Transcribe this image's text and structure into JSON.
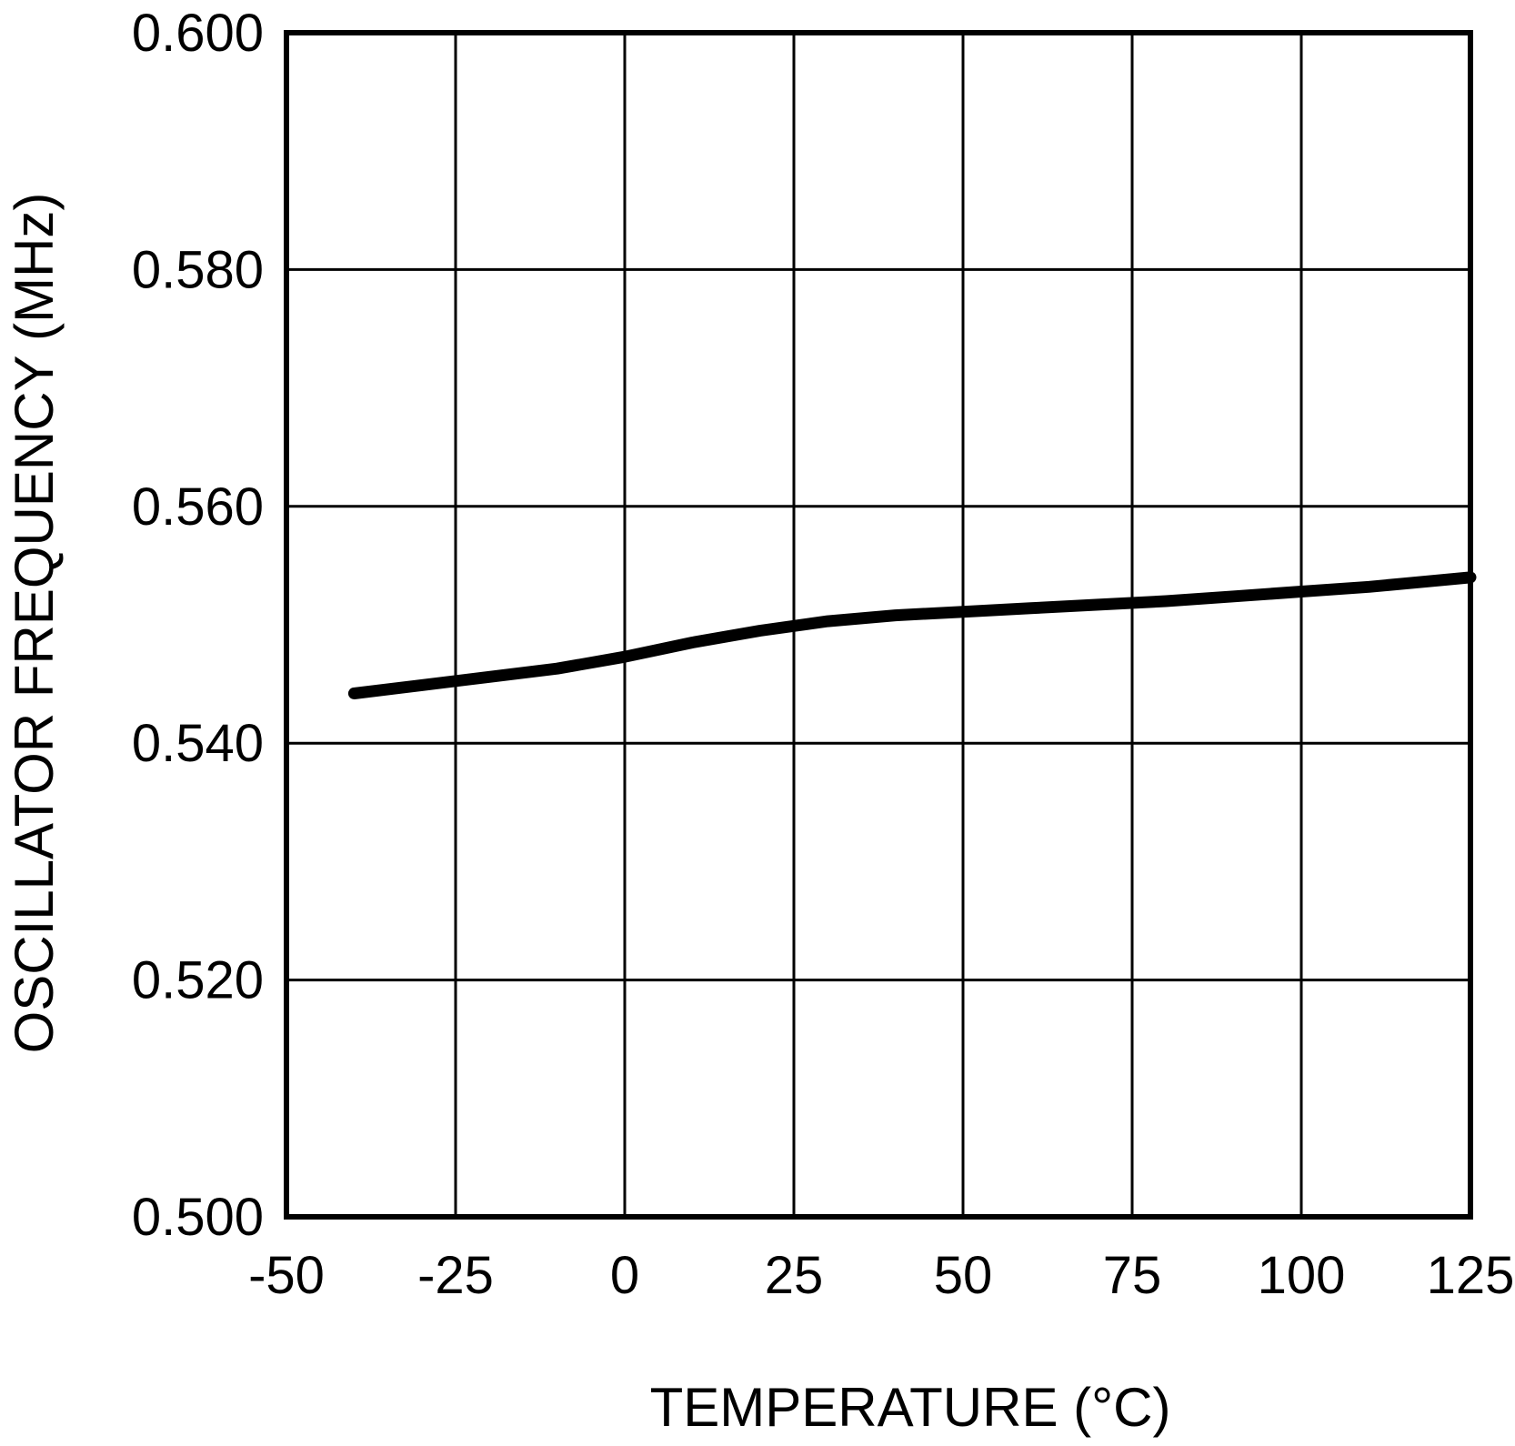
{
  "chart_data": {
    "type": "line",
    "title": "",
    "xlabel": "TEMPERATURE (°C)",
    "ylabel": "OSCILLATOR FREQUENCY (MHz)",
    "xlim": [
      -50,
      125
    ],
    "ylim": [
      0.5,
      0.6
    ],
    "x_ticks": [
      -50,
      -25,
      0,
      25,
      50,
      75,
      100,
      125
    ],
    "x_tick_labels": [
      "-50",
      "-25",
      "0",
      "25",
      "50",
      "75",
      "100",
      "125"
    ],
    "y_ticks": [
      0.5,
      0.52,
      0.54,
      0.56,
      0.58,
      0.6
    ],
    "y_tick_labels": [
      "0.500",
      "0.520",
      "0.540",
      "0.560",
      "0.580",
      "0.600"
    ],
    "grid": true,
    "series": [
      {
        "x": [
          -40,
          -30,
          -20,
          -10,
          0,
          10,
          20,
          30,
          40,
          50,
          60,
          70,
          80,
          90,
          100,
          110,
          125
        ],
        "y": [
          0.5442,
          0.5449,
          0.5456,
          0.5463,
          0.5473,
          0.5485,
          0.5495,
          0.5503,
          0.5508,
          0.5511,
          0.5514,
          0.5517,
          0.552,
          0.5524,
          0.5528,
          0.5532,
          0.554
        ]
      }
    ],
    "colors": {
      "line": "#000000",
      "grid": "#000000",
      "background": "#ffffff"
    }
  }
}
